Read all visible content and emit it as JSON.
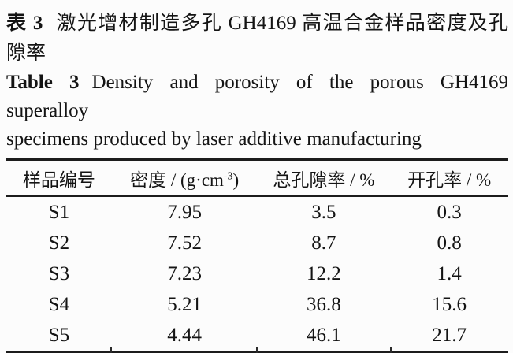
{
  "caption_cn": {
    "label": "表 3",
    "line1": "激光增材制造多孔 GH4169 高温合金样品密度及孔",
    "line2": "隙率"
  },
  "caption_en": {
    "label": "Table 3",
    "line1": "Density and porosity of the porous GH4169 superalloy",
    "line2": "specimens produced by laser additive manufacturing"
  },
  "table": {
    "columns": [
      {
        "text": "样品编号"
      },
      {
        "text": "密度 / (g·cm",
        "sup": "-3",
        "suffix": ")"
      },
      {
        "text": "总孔隙率 / %"
      },
      {
        "text": "开孔率 / %"
      }
    ],
    "rows": [
      [
        "S1",
        "7.95",
        "3.5",
        "0.3"
      ],
      [
        "S2",
        "7.52",
        "8.7",
        "0.8"
      ],
      [
        "S3",
        "7.23",
        "12.2",
        "1.4"
      ],
      [
        "S4",
        "5.21",
        "36.8",
        "15.6"
      ],
      [
        "S5",
        "4.44",
        "46.1",
        "21.7"
      ]
    ]
  },
  "colors": {
    "text": "#141414",
    "rule": "#1c1c1c",
    "background": "#fcfcfc"
  }
}
